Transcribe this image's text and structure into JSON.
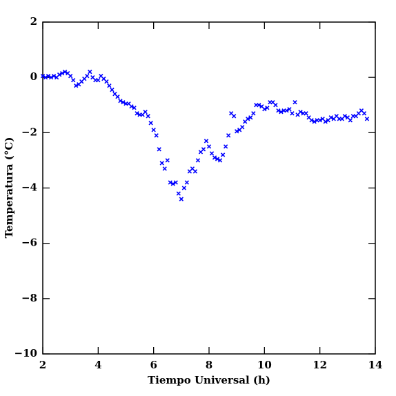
{
  "chart_data": {
    "type": "scatter",
    "xlabel": "Tiempo Universal (h)",
    "ylabel": "Temperatura (°C)",
    "marker": "x",
    "series": [
      {
        "color": "#0000ff",
        "x": [
          2.0,
          2.1,
          2.2,
          2.3,
          2.4,
          2.5,
          2.6,
          2.7,
          2.8,
          2.9,
          3.0,
          3.1,
          3.2,
          3.3,
          3.4,
          3.5,
          3.6,
          3.7,
          3.8,
          3.9,
          4.0,
          4.1,
          4.2,
          4.3,
          4.4,
          4.5,
          4.6,
          4.7,
          4.8,
          4.9,
          5.0,
          5.1,
          5.2,
          5.3,
          5.4,
          5.5,
          5.6,
          5.7,
          5.8,
          5.9,
          6.0,
          6.1,
          6.2,
          6.3,
          6.4,
          6.5,
          6.6,
          6.7,
          6.8,
          6.9,
          7.0,
          7.1,
          7.2,
          7.3,
          7.4,
          7.5,
          7.6,
          7.7,
          7.8,
          7.9,
          8.0,
          8.1,
          8.2,
          8.3,
          8.4,
          8.5,
          8.6,
          8.7,
          8.8,
          8.9,
          9.0,
          9.1,
          9.2,
          9.3,
          9.4,
          9.5,
          9.6,
          9.7,
          9.8,
          9.9,
          10.0,
          10.1,
          10.2,
          10.3,
          10.4,
          10.5,
          10.6,
          10.7,
          10.8,
          10.9,
          11.0,
          11.1,
          11.2,
          11.3,
          11.4,
          11.5,
          11.6,
          11.7,
          11.8,
          11.9,
          12.0,
          12.1,
          12.2,
          12.3,
          12.4,
          12.5,
          12.6,
          12.7,
          12.8,
          12.9,
          13.0,
          13.1,
          13.2,
          13.3,
          13.4,
          13.5,
          13.6,
          13.7
        ],
        "values": [
          0.05,
          0,
          0.05,
          0,
          0.05,
          0,
          0.1,
          0.15,
          0.2,
          0.15,
          0.05,
          -0.1,
          -0.3,
          -0.25,
          -0.15,
          -0.05,
          0.05,
          0.2,
          0,
          -0.1,
          -0.1,
          0.05,
          -0.05,
          -0.15,
          -0.3,
          -0.45,
          -0.6,
          -0.7,
          -0.85,
          -0.9,
          -0.95,
          -0.95,
          -1.05,
          -1.1,
          -1.3,
          -1.35,
          -1.35,
          -1.25,
          -1.4,
          -1.65,
          -1.9,
          -2.1,
          -2.6,
          -3.1,
          -3.3,
          -3.0,
          -3.8,
          -3.85,
          -3.8,
          -4.2,
          -4.4,
          -4.0,
          -3.8,
          -3.4,
          -3.3,
          -3.4,
          -3.0,
          -2.7,
          -2.6,
          -2.3,
          -2.5,
          -2.75,
          -2.9,
          -2.95,
          -3.0,
          -2.8,
          -2.5,
          -2.1,
          -1.3,
          -1.4,
          -1.95,
          -1.9,
          -1.8,
          -1.6,
          -1.5,
          -1.45,
          -1.3,
          -1.0,
          -1.0,
          -1.05,
          -1.15,
          -1.1,
          -0.9,
          -0.9,
          -1.0,
          -1.2,
          -1.25,
          -1.2,
          -1.2,
          -1.15,
          -1.3,
          -0.9,
          -1.35,
          -1.25,
          -1.3,
          -1.3,
          -1.45,
          -1.55,
          -1.6,
          -1.55,
          -1.55,
          -1.5,
          -1.6,
          -1.55,
          -1.45,
          -1.5,
          -1.4,
          -1.5,
          -1.5,
          -1.4,
          -1.45,
          -1.55,
          -1.4,
          -1.4,
          -1.3,
          -1.2,
          -1.3,
          -1.5
        ]
      }
    ],
    "xlim": [
      2,
      14
    ],
    "xticks": [
      2,
      4,
      6,
      8,
      10,
      12,
      14
    ],
    "ylim": [
      -10,
      2
    ],
    "yticks": [
      {
        "value": -10,
        "label": "−10"
      },
      {
        "value": -8,
        "label": "−8"
      },
      {
        "value": -6,
        "label": "−6"
      },
      {
        "value": -4,
        "label": "−4"
      },
      {
        "value": -2,
        "label": "−2"
      },
      0,
      2
    ],
    "grid": false
  }
}
